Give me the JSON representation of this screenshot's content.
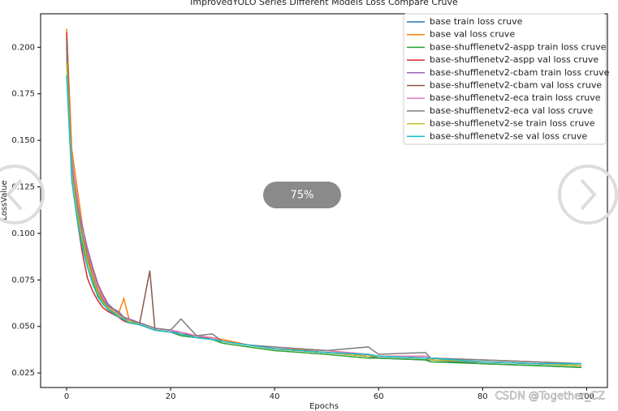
{
  "chart_data": {
    "type": "line",
    "title": "ImprovedYOLO Series Different Models Loss Compare Cruve",
    "x_label": "Epochs",
    "y_label": "LossValue",
    "x": [
      0,
      1,
      2,
      3,
      4,
      5,
      6,
      7,
      8,
      10,
      11,
      12,
      14,
      16,
      17,
      20,
      22,
      25,
      28,
      30,
      35,
      40,
      50,
      58,
      60,
      69,
      70,
      80,
      90,
      99
    ],
    "series": [
      {
        "name": "base train loss cruve",
        "color": "#1f77b4",
        "values": [
          0.193,
          0.14,
          0.118,
          0.098,
          0.086,
          0.076,
          0.068,
          0.063,
          0.06,
          0.055,
          0.054,
          0.052,
          0.051,
          0.049,
          0.048,
          0.047,
          0.045,
          0.044,
          0.043,
          0.042,
          0.04,
          0.038,
          0.036,
          0.034,
          0.033,
          0.032,
          0.032,
          0.03,
          0.029,
          0.028
        ]
      },
      {
        "name": "base val loss cruve",
        "color": "#ff7f0e",
        "values": [
          0.21,
          0.145,
          0.125,
          0.105,
          0.09,
          0.08,
          0.072,
          0.066,
          0.062,
          0.057,
          0.065,
          0.054,
          0.052,
          0.05,
          0.049,
          0.048,
          0.046,
          0.045,
          0.044,
          0.043,
          0.04,
          0.038,
          0.037,
          0.035,
          0.034,
          0.034,
          0.033,
          0.032,
          0.031,
          0.03
        ]
      },
      {
        "name": "base-shufflenetv2-aspp train loss cruve",
        "color": "#2ca02c",
        "values": [
          0.2,
          0.13,
          0.11,
          0.095,
          0.082,
          0.074,
          0.067,
          0.062,
          0.059,
          0.055,
          0.053,
          0.052,
          0.051,
          0.049,
          0.048,
          0.047,
          0.045,
          0.044,
          0.043,
          0.041,
          0.039,
          0.037,
          0.035,
          0.033,
          0.033,
          0.032,
          0.031,
          0.03,
          0.029,
          0.028
        ]
      },
      {
        "name": "base-shufflenetv2-aspp val loss cruve",
        "color": "#d62728",
        "values": [
          0.208,
          0.13,
          0.108,
          0.09,
          0.076,
          0.069,
          0.064,
          0.06,
          0.058,
          0.055,
          0.053,
          0.052,
          0.051,
          0.049,
          0.048,
          0.047,
          0.046,
          0.045,
          0.043,
          0.042,
          0.04,
          0.038,
          0.036,
          0.034,
          0.034,
          0.033,
          0.032,
          0.031,
          0.03,
          0.029
        ]
      },
      {
        "name": "base-shufflenetv2-cbam train loss cruve",
        "color": "#9467bd",
        "values": [
          0.2,
          0.135,
          0.118,
          0.104,
          0.092,
          0.082,
          0.073,
          0.067,
          0.062,
          0.057,
          0.055,
          0.054,
          0.052,
          0.05,
          0.049,
          0.048,
          0.046,
          0.045,
          0.043,
          0.042,
          0.04,
          0.038,
          0.036,
          0.034,
          0.034,
          0.033,
          0.032,
          0.031,
          0.03,
          0.029
        ]
      },
      {
        "name": "base-shufflenetv2-cbam val loss cruve",
        "color": "#8c564b",
        "values": [
          0.205,
          0.13,
          0.115,
          0.098,
          0.085,
          0.076,
          0.069,
          0.064,
          0.06,
          0.056,
          0.054,
          0.053,
          0.051,
          0.08,
          0.048,
          0.047,
          0.046,
          0.045,
          0.043,
          0.042,
          0.04,
          0.038,
          0.036,
          0.035,
          0.034,
          0.033,
          0.032,
          0.031,
          0.03,
          0.029
        ]
      },
      {
        "name": "base-shufflenetv2-eca train loss cruve",
        "color": "#e377c2",
        "values": [
          0.195,
          0.138,
          0.12,
          0.1,
          0.088,
          0.078,
          0.07,
          0.065,
          0.061,
          0.056,
          0.055,
          0.053,
          0.052,
          0.05,
          0.049,
          0.048,
          0.047,
          0.045,
          0.044,
          0.042,
          0.04,
          0.039,
          0.037,
          0.035,
          0.034,
          0.034,
          0.033,
          0.032,
          0.031,
          0.03
        ]
      },
      {
        "name": "base-shufflenetv2-eca val loss cruve",
        "color": "#7f7f7f",
        "values": [
          0.2,
          0.135,
          0.116,
          0.1,
          0.087,
          0.077,
          0.069,
          0.064,
          0.061,
          0.058,
          0.055,
          0.053,
          0.052,
          0.05,
          0.049,
          0.048,
          0.054,
          0.045,
          0.046,
          0.042,
          0.04,
          0.039,
          0.037,
          0.039,
          0.035,
          0.036,
          0.033,
          0.032,
          0.031,
          0.03
        ]
      },
      {
        "name": "base-shufflenetv2-se train loss cruve",
        "color": "#bcbd22",
        "values": [
          0.192,
          0.132,
          0.112,
          0.097,
          0.085,
          0.076,
          0.068,
          0.063,
          0.06,
          0.056,
          0.054,
          0.053,
          0.051,
          0.049,
          0.048,
          0.047,
          0.046,
          0.044,
          0.043,
          0.042,
          0.04,
          0.038,
          0.036,
          0.034,
          0.034,
          0.033,
          0.032,
          0.031,
          0.03,
          0.029
        ]
      },
      {
        "name": "base-shufflenetv2-se val loss cruve",
        "color": "#17becf",
        "values": [
          0.185,
          0.128,
          0.108,
          0.093,
          0.082,
          0.073,
          0.066,
          0.062,
          0.059,
          0.055,
          0.054,
          0.052,
          0.051,
          0.049,
          0.048,
          0.047,
          0.046,
          0.044,
          0.043,
          0.042,
          0.04,
          0.038,
          0.036,
          0.035,
          0.034,
          0.033,
          0.033,
          0.031,
          0.03,
          0.03
        ]
      }
    ],
    "xlim": [
      -5,
      104
    ],
    "ylim": [
      0.0172,
      0.218
    ],
    "xticks": [
      0,
      20,
      40,
      60,
      80,
      100
    ],
    "yticks": [
      {
        "value": 0.025,
        "label": "0.025"
      },
      {
        "value": 0.05,
        "label": "0.050"
      },
      {
        "value": 0.075,
        "label": "0.075"
      },
      {
        "value": 0.1,
        "label": "0.100"
      },
      {
        "value": 0.125,
        "label": "0.125"
      },
      {
        "value": 0.15,
        "label": "0.150"
      },
      {
        "value": 0.175,
        "label": "0.175"
      },
      {
        "value": 0.2,
        "label": "0.200"
      }
    ],
    "grid": false,
    "legend": "upper right"
  },
  "viewer": {
    "zoom": "75%",
    "watermark": "CSDN @Together_CZ"
  }
}
